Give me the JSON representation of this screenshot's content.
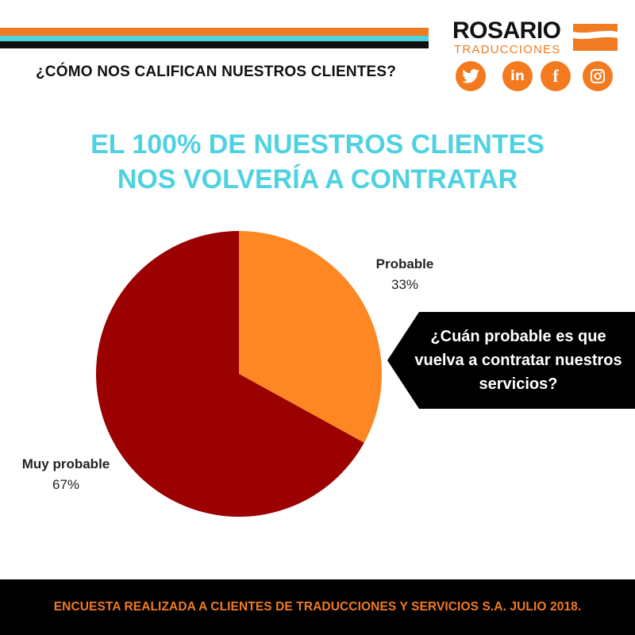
{
  "header": {
    "question": "¿CÓMO NOS CALIFICAN NUESTROS CLIENTES?"
  },
  "logo": {
    "main": "ROSARIO",
    "sub": "TRADUCCIONES"
  },
  "social": [
    {
      "icon": "twitter-icon",
      "glyph": ""
    },
    {
      "icon": "linkedin-icon",
      "glyph": "in"
    },
    {
      "icon": "facebook-icon",
      "glyph": "f"
    },
    {
      "icon": "instagram-icon",
      "glyph": ""
    }
  ],
  "headline": {
    "line1": "EL 100% DE NUESTROS CLIENTES",
    "line2": "NOS VOLVERÍA A CONTRATAR"
  },
  "question_box": {
    "text": "¿Cuán probable es que vuelva a contratar nuestros servicios?"
  },
  "chart_data": {
    "type": "pie",
    "slices": [
      {
        "name": "Probable",
        "label": "33%",
        "value": 33,
        "color": "#fd8823"
      },
      {
        "name": "Muy probable",
        "label": "67%",
        "value": 67,
        "color": "#9b0101"
      }
    ]
  },
  "footer": {
    "text": "ENCUESTA REALIZADA A CLIENTES DE TRADUCCIONES Y SERVICIOS S.A. JULIO 2018."
  },
  "colors": {
    "accent_orange": "#f07b22",
    "accent_cyan": "#4fd2e0",
    "dark": "#111111"
  }
}
